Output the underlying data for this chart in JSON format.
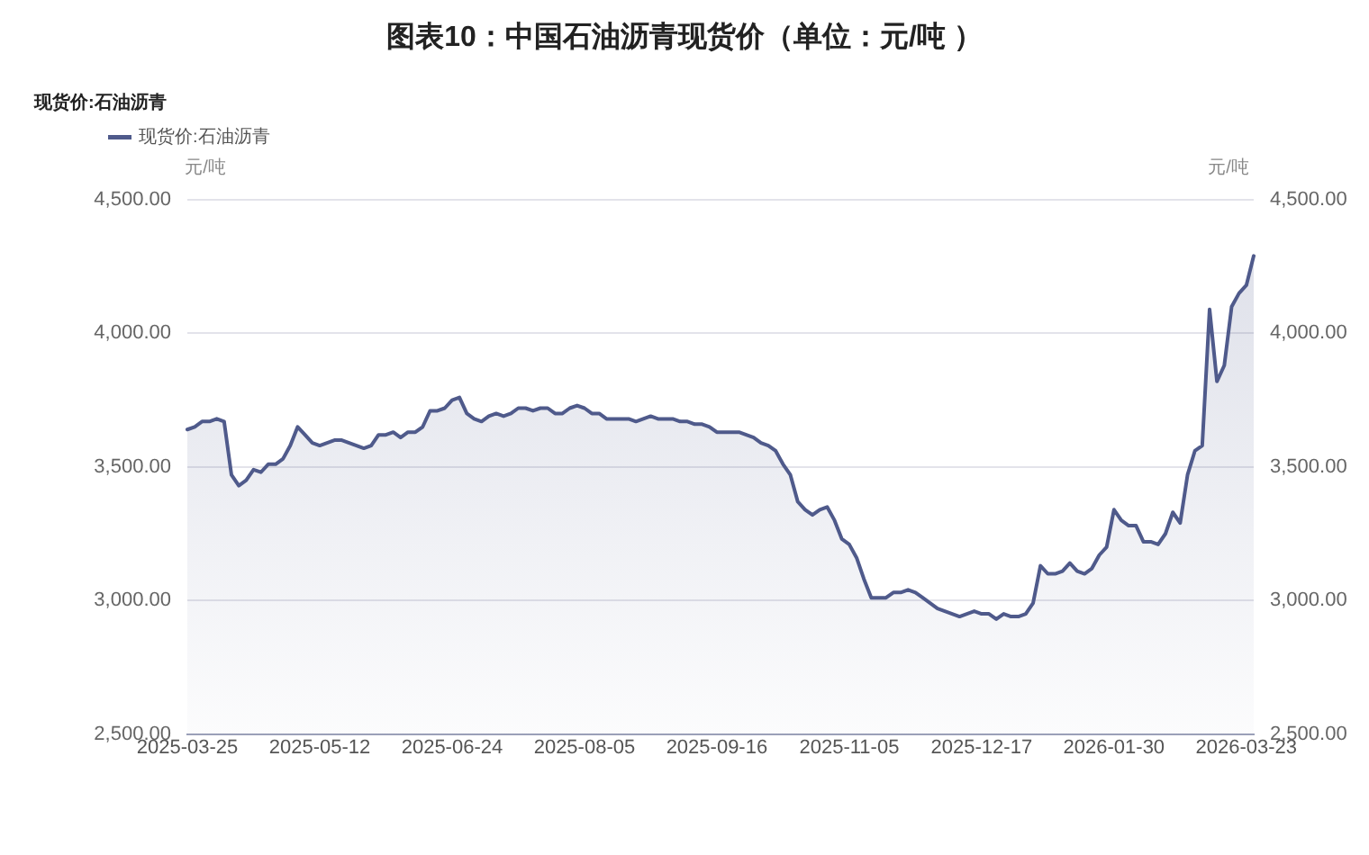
{
  "chart_data": {
    "type": "area",
    "title": "图表10：中国石油沥青现货价（单位：元/吨 ）",
    "subtitle": "现货价:石油沥青",
    "ylabel": "元/吨",
    "y2label": "元/吨",
    "categories": [
      "2025-03-25",
      null,
      null,
      null,
      null,
      null,
      null,
      null,
      null,
      null,
      null,
      null,
      null,
      null,
      null,
      null,
      null,
      null,
      "2025-05-12",
      null,
      null,
      null,
      null,
      null,
      null,
      null,
      null,
      null,
      null,
      null,
      null,
      null,
      null,
      null,
      null,
      null,
      "2025-06-24",
      null,
      null,
      null,
      null,
      null,
      null,
      null,
      null,
      null,
      null,
      null,
      null,
      null,
      null,
      null,
      null,
      null,
      "2025-08-05",
      null,
      null,
      null,
      null,
      null,
      null,
      null,
      null,
      null,
      null,
      null,
      null,
      null,
      null,
      null,
      null,
      null,
      "2025-09-16",
      null,
      null,
      null,
      null,
      null,
      null,
      null,
      null,
      null,
      null,
      null,
      null,
      null,
      null,
      null,
      null,
      null,
      "2025-11-05",
      null,
      null,
      null,
      null,
      null,
      null,
      null,
      null,
      null,
      null,
      null,
      null,
      null,
      null,
      null,
      null,
      null,
      "2025-12-17",
      null,
      null,
      null,
      null,
      null,
      null,
      null,
      null,
      null,
      null,
      null,
      null,
      null,
      null,
      null,
      null,
      null,
      "2026-01-30",
      null,
      null,
      null,
      null,
      null,
      null,
      null,
      null,
      null,
      null,
      null,
      null,
      null,
      null,
      null,
      null,
      null,
      "2026-03-23",
      null
    ],
    "series": [
      {
        "name": "现货价:石油沥青",
        "color": "#4f5a8b",
        "values": [
          3640,
          3650,
          3670,
          3670,
          3680,
          3670,
          3470,
          3430,
          3450,
          3490,
          3480,
          3510,
          3510,
          3530,
          3580,
          3650,
          3620,
          3590,
          3580,
          3590,
          3600,
          3600,
          3590,
          3580,
          3570,
          3580,
          3620,
          3620,
          3630,
          3610,
          3630,
          3630,
          3650,
          3710,
          3710,
          3720,
          3750,
          3760,
          3700,
          3680,
          3670,
          3690,
          3700,
          3690,
          3700,
          3720,
          3720,
          3710,
          3720,
          3720,
          3700,
          3700,
          3720,
          3730,
          3720,
          3700,
          3700,
          3680,
          3680,
          3680,
          3680,
          3670,
          3680,
          3690,
          3680,
          3680,
          3680,
          3670,
          3670,
          3660,
          3660,
          3650,
          3630,
          3630,
          3630,
          3630,
          3620,
          3610,
          3590,
          3580,
          3560,
          3510,
          3470,
          3370,
          3340,
          3320,
          3340,
          3350,
          3300,
          3230,
          3210,
          3160,
          3080,
          3010,
          3010,
          3010,
          3030,
          3030,
          3040,
          3030,
          3010,
          2990,
          2970,
          2960,
          2950,
          2940,
          2950,
          2960,
          2950,
          2950,
          2930,
          2950,
          2940,
          2940,
          2950,
          2990,
          3130,
          3100,
          3100,
          3110,
          3140,
          3110,
          3100,
          3120,
          3170,
          3200,
          3340,
          3300,
          3280,
          3280,
          3220,
          3220,
          3210,
          3250,
          3330,
          3290,
          3470,
          3560,
          3580,
          4090,
          3820,
          3880,
          4100,
          4150,
          4180,
          4290
        ]
      }
    ],
    "ylim": [
      2500,
      4500
    ],
    "yticks": [
      {
        "value": 2500,
        "label": "2,500.00"
      },
      {
        "value": 3000,
        "label": "3,000.00"
      },
      {
        "value": 3500,
        "label": "3,500.00"
      },
      {
        "value": 4000,
        "label": "4,000.00"
      },
      {
        "value": 4500,
        "label": "4,500.00"
      }
    ],
    "y2lim": [
      2500,
      4500
    ],
    "y2ticks": [
      {
        "value": 2500,
        "label": "2,500.00"
      },
      {
        "value": 3000,
        "label": "3,000.00"
      },
      {
        "value": 3500,
        "label": "3,500.00"
      },
      {
        "value": 4000,
        "label": "4,000.00"
      },
      {
        "value": 4500,
        "label": "4,500.00"
      }
    ],
    "grid": "y",
    "legend": "top left"
  }
}
